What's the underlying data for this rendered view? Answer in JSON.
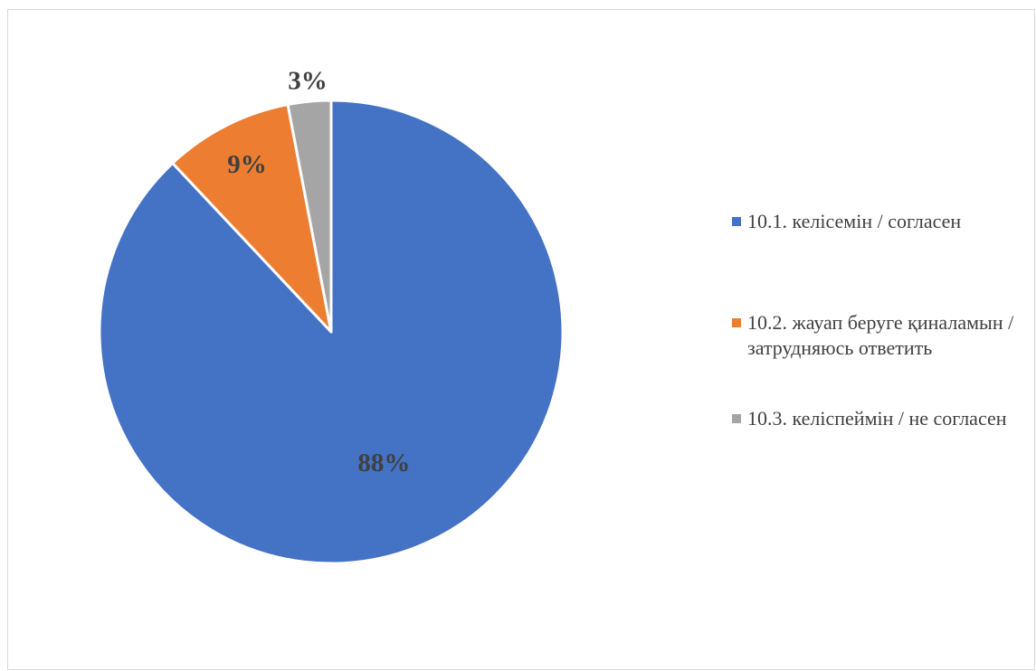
{
  "chart_data": {
    "type": "pie",
    "slices": [
      {
        "label": "10.1. келісемін / согласен",
        "value": 88,
        "display": "88%",
        "color": "#4472C4"
      },
      {
        "label": "10.2. жауап беруге қиналамын / затрудняюсь ответить",
        "value": 9,
        "display": "9%",
        "color": "#ED7D31"
      },
      {
        "label": "10.3. келіспеймін / не согласен",
        "value": 3,
        "display": "3%",
        "color": "#A5A5A5"
      }
    ],
    "legend_position": "right",
    "data_labels": "percent"
  }
}
